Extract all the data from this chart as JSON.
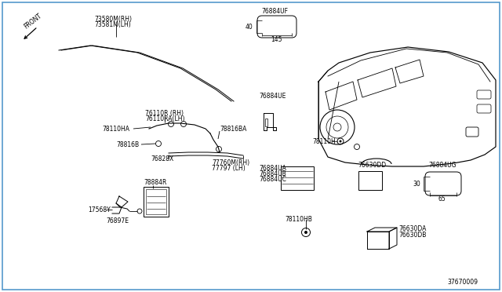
{
  "bg_color": "#ffffff",
  "border_color": "#5599cc",
  "line_color": "#000000",
  "diagram_number": "37670009",
  "labels": {
    "73580M_RH": "73580M(RH)",
    "73581M_LH": "73581M(LH)",
    "76110R_RH": "76110R (RH)",
    "76110RA_LH": "76110RA(LH)",
    "78110HA": "78110HA",
    "78816B": "78816B",
    "78816BA": "78816BA",
    "76828X": "76828X",
    "77760M_RH": "77760M(RH)",
    "77797_LH": "77797 (LH)",
    "17568Y": "17568Y",
    "76897E": "76897E",
    "78884R": "78884R",
    "76884UF": "76884UF",
    "76884UE": "76884UE",
    "78110H": "78110H",
    "76884UA": "76884UA",
    "76884UB": "76884UB",
    "76884UC": "76884UC",
    "76630DD": "76630DD",
    "76884UG": "76884UG",
    "78110HB": "78110HB",
    "76630DA": "76630DA",
    "76630DB": "76630DB",
    "front": "FRONT",
    "dim_40": "40",
    "dim_145": "145",
    "dim_30": "30",
    "dim_65": "65"
  }
}
